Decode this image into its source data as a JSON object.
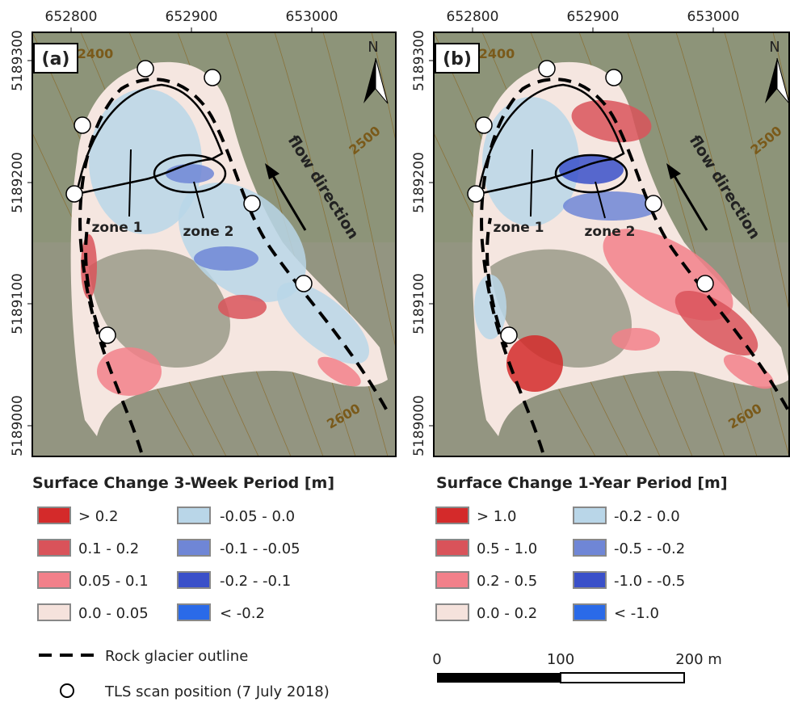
{
  "panels": [
    {
      "label": "(a)",
      "x_ticks": [
        "652800",
        "652900",
        "653000"
      ],
      "y_ticks": [
        "5189300",
        "5189200",
        "5189100",
        "5189000"
      ],
      "north": "N",
      "contours": [
        "2400",
        "2500",
        "2600"
      ],
      "zones": [
        "zone 1",
        "zone 2"
      ],
      "flow": "flow direction"
    },
    {
      "label": "(b)",
      "x_ticks": [
        "652800",
        "652900",
        "653000"
      ],
      "y_ticks": [
        "5189300",
        "5189200",
        "5189100",
        "5189000"
      ],
      "north": "N",
      "contours": [
        "2400",
        "2500",
        "2600"
      ],
      "zones": [
        "zone 1",
        "zone 2"
      ],
      "flow": "flow direction"
    }
  ],
  "legends": [
    {
      "title": "Surface Change 3-Week Period [m]",
      "items": [
        {
          "label": "> 0.2",
          "color": "#d42a2a"
        },
        {
          "label": "0.1 - 0.2",
          "color": "#d9535a"
        },
        {
          "label": "0.05 - 0.1",
          "color": "#f2808a"
        },
        {
          "label": "0.0 - 0.05",
          "color": "#f5e2dc"
        },
        {
          "label": "-0.05 - 0.0",
          "color": "#b9d6e8"
        },
        {
          "label": "-0.1 - -0.05",
          "color": "#6f86d6"
        },
        {
          "label": "-0.2 - -0.1",
          "color": "#3a50c9"
        },
        {
          "label": "< -0.2",
          "color": "#2a6ae8"
        }
      ]
    },
    {
      "title": "Surface Change 1-Year Period [m]",
      "items": [
        {
          "label": "> 1.0",
          "color": "#d42a2a"
        },
        {
          "label": "0.5 - 1.0",
          "color": "#d9535a"
        },
        {
          "label": "0.2 - 0.5",
          "color": "#f2808a"
        },
        {
          "label": "0.0 - 0.2",
          "color": "#f5e2dc"
        },
        {
          "label": "-0.2 - 0.0",
          "color": "#b9d6e8"
        },
        {
          "label": "-0.5 - -0.2",
          "color": "#6f86d6"
        },
        {
          "label": "-1.0 - -0.5",
          "color": "#3a50c9"
        },
        {
          "label": "< -1.0",
          "color": "#2a6ae8"
        }
      ]
    }
  ],
  "outline_legend": "Rock glacier outline",
  "scan_legend": "TLS scan position (7 July 2018)",
  "scale_bar": [
    "0",
    "100",
    "200 m"
  ]
}
